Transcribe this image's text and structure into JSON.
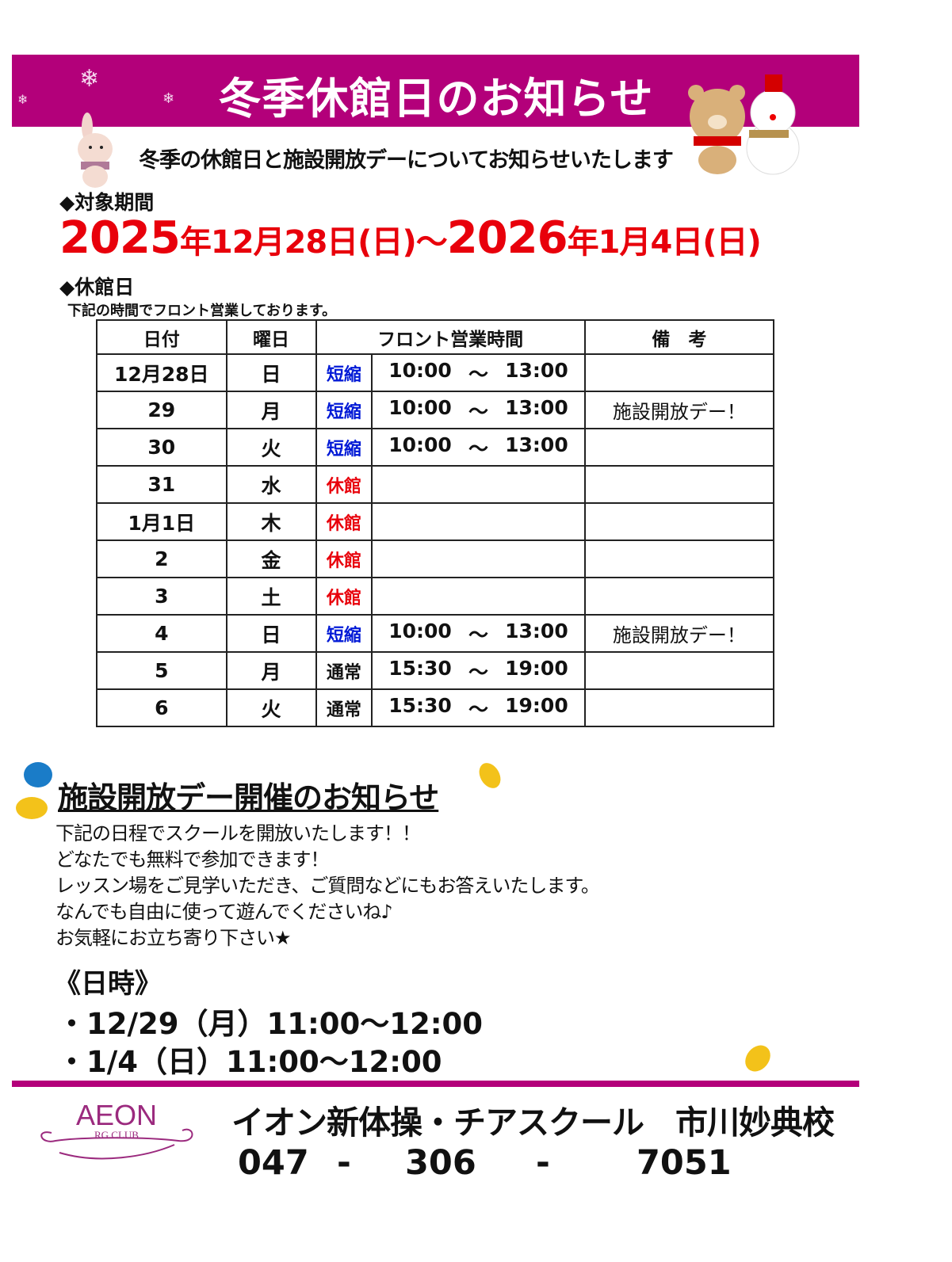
{
  "header": {
    "title": "冬季休館日のお知らせ",
    "subtitle": "冬季の休館日と施設開放デーについてお知らせいたします"
  },
  "period": {
    "heading": "◆対象期間",
    "y1": "2025",
    "t1": "年12月28日(日)～",
    "y2": "2026",
    "t2": "年1月4日(日)"
  },
  "closure": {
    "heading": "◆休館日",
    "note": "下記の時間でフロント営業しております。"
  },
  "table": {
    "headers": [
      "日付",
      "曜日",
      "フロント営業時間",
      "備　考"
    ],
    "rows": [
      {
        "date": "12月28日",
        "day": "日",
        "status": "短縮",
        "type": "blue",
        "open": "10:00",
        "sep": "～",
        "close": "13:00",
        "remark": ""
      },
      {
        "date": "29",
        "day": "月",
        "status": "短縮",
        "type": "blue",
        "open": "10:00",
        "sep": "～",
        "close": "13:00",
        "remark": "施設開放デー！"
      },
      {
        "date": "30",
        "day": "火",
        "status": "短縮",
        "type": "blue",
        "open": "10:00",
        "sep": "～",
        "close": "13:00",
        "remark": ""
      },
      {
        "date": "31",
        "day": "水",
        "status": "休館",
        "type": "red",
        "open": "",
        "sep": "",
        "close": "",
        "remark": ""
      },
      {
        "date": "1月1日",
        "day": "木",
        "status": "休館",
        "type": "red",
        "open": "",
        "sep": "",
        "close": "",
        "remark": ""
      },
      {
        "date": "2",
        "day": "金",
        "status": "休館",
        "type": "red",
        "open": "",
        "sep": "",
        "close": "",
        "remark": ""
      },
      {
        "date": "3",
        "day": "土",
        "status": "休館",
        "type": "red",
        "open": "",
        "sep": "",
        "close": "",
        "remark": ""
      },
      {
        "date": "4",
        "day": "日",
        "status": "短縮",
        "type": "blue",
        "open": "10:00",
        "sep": "～",
        "close": "13:00",
        "remark": "施設開放デー！"
      },
      {
        "date": "5",
        "day": "月",
        "status": "通常",
        "type": "norm",
        "open": "15:30",
        "sep": "～",
        "close": "19:00",
        "remark": ""
      },
      {
        "date": "6",
        "day": "火",
        "status": "通常",
        "type": "norm",
        "open": "15:30",
        "sep": "～",
        "close": "19:00",
        "remark": ""
      }
    ]
  },
  "openday": {
    "title": "施設開放デー開催のお知らせ",
    "lines": [
      "下記の日程でスクールを開放いたします！！",
      "どなたでも無料で参加できます！",
      "レッスン場をご見学いただき、ご質問などにもお答えいたします。",
      "なんでも自由に使って遊んでくださいね♪",
      "お気軽にお立ち寄り下さい★"
    ],
    "datetime_heading": "《日時》",
    "dates": [
      "・12/29（月）11:00～12:00",
      "・1/4（日）11:00～12:00"
    ]
  },
  "footer": {
    "logo_text": "AEON",
    "logo_sub": "RG CLUB",
    "school": "イオン新体操・チアスクール　市川妙典校",
    "phone": [
      "047",
      "-",
      "306",
      "-",
      "7051"
    ]
  },
  "colors": {
    "accent": "#b3007a",
    "red": "#e8000b",
    "blue": "#0019d6"
  }
}
